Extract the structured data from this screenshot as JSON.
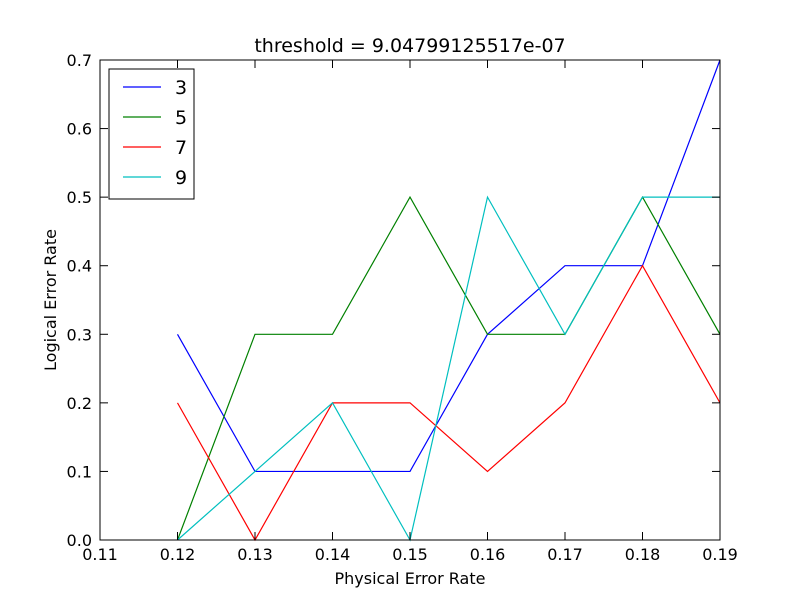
{
  "chart_data": {
    "type": "line",
    "title": "threshold = 9.04799125517e-07",
    "xlabel": "Physical Error Rate",
    "ylabel": "Logical Error Rate",
    "xlim": [
      0.11,
      0.19
    ],
    "ylim": [
      0.0,
      0.7
    ],
    "xticks": [
      "0.11",
      "0.12",
      "0.13",
      "0.14",
      "0.15",
      "0.16",
      "0.17",
      "0.18",
      "0.19"
    ],
    "yticks": [
      "0.0",
      "0.1",
      "0.2",
      "0.3",
      "0.4",
      "0.5",
      "0.6",
      "0.7"
    ],
    "x": [
      0.12,
      0.13,
      0.14,
      0.15,
      0.16,
      0.17,
      0.18,
      0.19
    ],
    "grid": false,
    "legend_position": "top-left",
    "series": [
      {
        "name": "3",
        "color": "#0000ff",
        "values": [
          0.3,
          0.1,
          0.1,
          0.1,
          0.3,
          0.4,
          0.4,
          0.7
        ]
      },
      {
        "name": "5",
        "color": "#008000",
        "values": [
          0.0,
          0.3,
          0.3,
          0.5,
          0.3,
          0.3,
          0.5,
          0.3
        ]
      },
      {
        "name": "7",
        "color": "#ff0000",
        "values": [
          0.2,
          0.0,
          0.2,
          0.2,
          0.1,
          0.2,
          0.4,
          0.2
        ]
      },
      {
        "name": "9",
        "color": "#00bfbf",
        "values": [
          0.0,
          0.1,
          0.2,
          0.0,
          0.5,
          0.3,
          0.5,
          0.5
        ]
      }
    ]
  }
}
